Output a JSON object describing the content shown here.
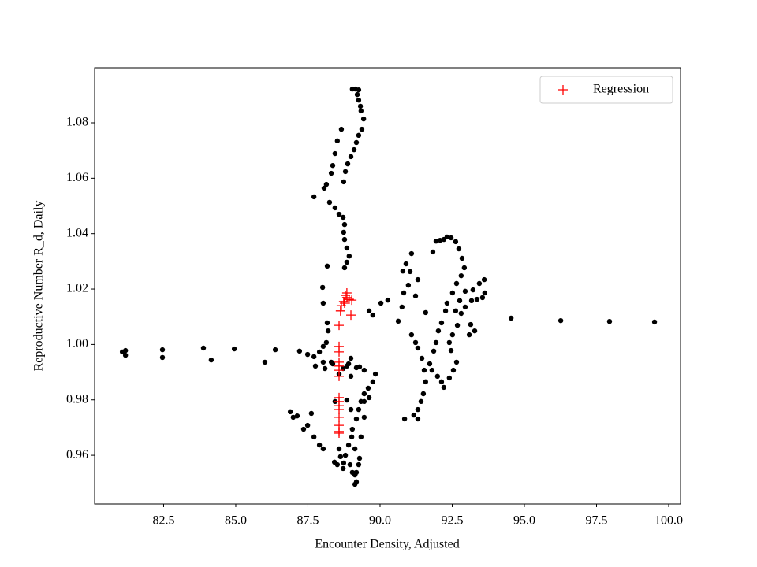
{
  "chart_data": {
    "type": "scatter",
    "xlabel": "Encounter Density, Adjusted",
    "ylabel": "Reproductive Number R_d, Daily",
    "xlim": [
      80.11,
      100.41
    ],
    "ylim": [
      0.9424,
      1.0999
    ],
    "xticks": [
      82.5,
      {
        "value": 85,
        "label": "85.0"
      },
      87.5,
      {
        "value": 90,
        "label": "90.0"
      },
      92.5,
      {
        "value": 95,
        "label": "95.0"
      },
      97.5,
      {
        "value": 100,
        "label": "100.0"
      }
    ],
    "yticks": [
      0.96,
      0.98,
      {
        "value": 1,
        "label": "1.00"
      },
      1.02,
      1.04,
      1.06,
      1.08
    ],
    "legend": "upper right",
    "series": [
      {
        "color": "#000000",
        "marker": "o",
        "x": [
          81.07,
          81.18,
          81.18,
          82.46,
          82.46,
          83.88,
          84.15,
          84.95,
          86.01,
          86.37,
          94.54,
          96.26,
          97.95,
          99.51,
          89.04,
          89.15,
          89.26,
          89.21,
          89.26,
          89.32,
          89.34,
          89.43,
          89.37,
          89.26,
          89.18,
          89.1,
          88.99,
          88.88,
          88.8,
          88.74,
          88.66,
          88.52,
          88.44,
          88.36,
          88.31,
          88.14,
          88.06,
          87.71,
          88.25,
          88.44,
          88.58,
          88.72,
          88.77,
          88.74,
          88.77,
          88.85,
          88.93,
          88.85,
          88.77,
          88.17,
          88.01,
          88.03,
          88.17,
          88.2,
          88.14,
          88.03,
          87.9,
          87.71,
          87.21,
          87.49,
          88.31,
          88.09,
          87.76,
          88.91,
          89.18,
          89.45,
          89.84,
          89.75,
          89.59,
          89.45,
          89.34,
          89.26,
          89.18,
          89.04,
          89.02,
          88.91,
          88.8,
          88.74,
          88.52,
          88.42,
          88.63,
          89.13,
          89.29,
          89.18,
          89.13,
          89.18,
          89.26,
          89.34,
          88.99,
          88.85,
          88.99,
          88.58,
          88.44,
          87.62,
          87.35,
          86.99,
          86.89,
          87.13,
          87.49,
          87.71,
          87.9,
          88.03,
          88.58,
          88.72,
          88.96,
          89.04,
          89.13,
          89.45,
          89.45,
          89.62,
          89.29,
          88.85,
          88.72,
          88.36,
          88.99,
          88.03,
          89.62,
          89.75,
          90.03,
          90.27,
          90.63,
          90.76,
          90.82,
          90.98,
          91.04,
          90.9,
          90.79,
          91.09,
          91.23,
          91.31,
          91.09,
          91.23,
          91.31,
          91.45,
          91.53,
          91.58,
          91.5,
          91.42,
          91.31,
          91.17,
          90.85,
          91.31,
          91.58,
          91.83,
          91.94,
          92.08,
          92.21,
          92.32,
          92.46,
          92.62,
          92.73,
          92.84,
          92.92,
          92.81,
          92.65,
          92.51,
          92.32,
          92.27,
          92.13,
          92.02,
          91.94,
          91.86,
          91.72,
          91.8,
          91.99,
          92.13,
          92.21,
          92.4,
          92.54,
          92.65,
          92.46,
          92.4,
          92.51,
          92.68,
          92.81,
          92.95,
          93.17,
          93.36,
          93.55,
          93.63,
          93.61,
          93.44,
          93.22,
          92.95,
          92.76,
          92.62,
          93.14,
          93.28,
          93.09
        ],
        "values": [
          0.9973,
          0.9978,
          0.9961,
          0.9981,
          0.9953,
          0.9987,
          0.9944,
          0.9984,
          0.9936,
          0.9981,
          1.0095,
          1.0086,
          1.0083,
          1.0081,
          1.0922,
          1.0922,
          1.0919,
          1.0902,
          1.0882,
          1.086,
          1.0843,
          1.0814,
          1.0777,
          1.0755,
          1.0729,
          1.0703,
          1.0678,
          1.0652,
          1.0624,
          1.0587,
          1.0777,
          1.0735,
          1.0689,
          1.0646,
          1.0618,
          1.0578,
          1.0564,
          1.0533,
          1.0513,
          1.0493,
          1.047,
          1.0459,
          1.0433,
          1.0405,
          1.0379,
          1.0348,
          1.0319,
          1.0297,
          1.0277,
          1.0283,
          1.0206,
          1.0149,
          1.0078,
          1.0049,
          1.0007,
          0.9993,
          0.9973,
          0.9956,
          0.9976,
          0.9964,
          0.9936,
          0.9913,
          0.9922,
          0.993,
          0.9916,
          0.9907,
          0.9893,
          0.9865,
          0.9842,
          0.9822,
          0.9794,
          0.9765,
          0.9731,
          0.9694,
          0.9666,
          0.9637,
          0.96,
          0.9572,
          0.9566,
          0.9575,
          0.9595,
          0.9623,
          0.9589,
          0.9538,
          0.9495,
          0.9504,
          0.9566,
          0.9666,
          0.9765,
          0.9799,
          0.9885,
          0.9893,
          0.9794,
          0.9751,
          0.9694,
          0.9737,
          0.9757,
          0.9742,
          0.9708,
          0.9666,
          0.9637,
          0.9623,
          0.9623,
          0.9552,
          0.9566,
          0.9538,
          0.9529,
          0.9737,
          0.9794,
          0.9808,
          0.9919,
          0.9922,
          0.9913,
          0.993,
          0.995,
          0.9936,
          1.0121,
          1.0106,
          1.0149,
          1.016,
          1.0084,
          1.0135,
          1.0186,
          1.0214,
          1.0263,
          1.0291,
          1.0265,
          1.0328,
          1.0175,
          1.0234,
          1.0035,
          1.0007,
          0.9987,
          0.995,
          0.9907,
          0.9865,
          0.9822,
          0.9794,
          0.9765,
          0.9745,
          0.9731,
          0.9731,
          1.0115,
          1.0334,
          1.0373,
          1.0376,
          1.0379,
          1.0388,
          1.0385,
          1.0371,
          1.0345,
          1.0311,
          1.0277,
          1.0248,
          1.022,
          1.0186,
          1.0149,
          1.0121,
          1.0078,
          1.0049,
          1.0007,
          0.9976,
          0.993,
          0.9907,
          0.9885,
          0.9865,
          0.9845,
          0.9879,
          0.9907,
          0.9936,
          0.9978,
          1.0007,
          1.0035,
          1.0069,
          1.0112,
          1.0135,
          1.0158,
          1.0163,
          1.0169,
          1.0186,
          1.0234,
          1.022,
          1.0197,
          1.0192,
          1.0158,
          1.0121,
          1.0072,
          1.0049,
          1.0035
        ]
      },
      {
        "name": "Regression",
        "color": "#ff0000",
        "marker": "+",
        "x": [
          88.58,
          88.58,
          88.58,
          88.58,
          88.58,
          88.58,
          88.58,
          88.58,
          88.58,
          88.58,
          88.58,
          88.58,
          88.58,
          88.58,
          88.58,
          88.63,
          88.66,
          88.74,
          88.8,
          88.85,
          88.93,
          89.02,
          88.99,
          88.77,
          88.85
        ],
        "values": [
          0.9993,
          0.9973,
          0.9936,
          0.9922,
          0.9907,
          0.9885,
          0.9808,
          0.9794,
          0.9779,
          0.9765,
          0.9737,
          0.9708,
          0.9686,
          0.968,
          1.0069,
          1.0121,
          1.014,
          1.0155,
          1.0177,
          1.0186,
          1.0163,
          1.016,
          1.0106,
          1.0149,
          1.0169
        ]
      }
    ]
  }
}
